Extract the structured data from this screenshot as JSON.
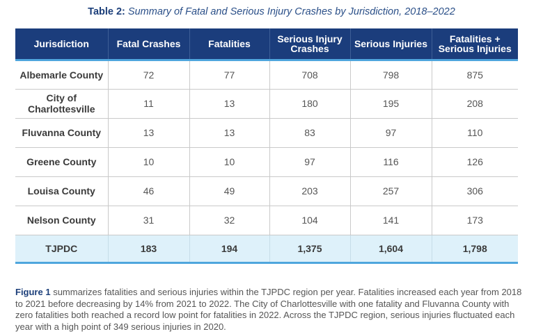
{
  "caption": {
    "label": "Table 2:",
    "text": "Summary of Fatal and Serious Injury Crashes by Jurisdiction, 2018–2022"
  },
  "table": {
    "headers": [
      "Jurisdiction",
      "Fatal Crashes",
      "Fatalities",
      "Serious Injury Crashes",
      "Serious Injuries",
      "Fatalities + Serious Injuries"
    ],
    "rows": [
      [
        "Albemarle County",
        "72",
        "77",
        "708",
        "798",
        "875"
      ],
      [
        "City of Charlottesville",
        "11",
        "13",
        "180",
        "195",
        "208"
      ],
      [
        "Fluvanna County",
        "13",
        "13",
        "83",
        "97",
        "110"
      ],
      [
        "Greene County",
        "10",
        "10",
        "97",
        "116",
        "126"
      ],
      [
        "Louisa County",
        "46",
        "49",
        "203",
        "257",
        "306"
      ],
      [
        "Nelson County",
        "31",
        "32",
        "104",
        "141",
        "173"
      ]
    ],
    "total": [
      "TJPDC",
      "183",
      "194",
      "1,375",
      "1,604",
      "1,798"
    ]
  },
  "summary": {
    "figure_ref": "Figure 1",
    "text": " summarizes fatalities and serious injuries within the TJPDC region per year. Fatalities increased each year from 2018 to 2021 before decreasing by 14% from 2021 to 2022. The City of Charlottesville with one fatality and Fluvanna County with zero fatalities both reached a record low point for fatalities in 2022. Across the TJPDC region, serious injuries fluctuated each year with a high point of 349 serious injuries in 2020."
  },
  "colors": {
    "header_bg": "#1b3d7c",
    "accent_line": "#4fa6dd",
    "total_row_bg": "#def1fa",
    "caption_text": "#1c3f7a"
  }
}
